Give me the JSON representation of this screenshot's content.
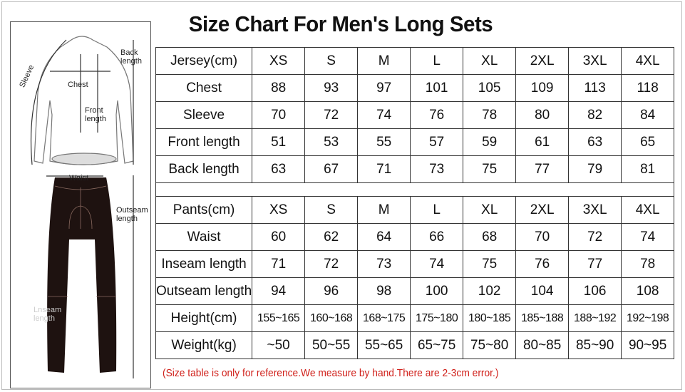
{
  "title": "Size Chart For Men's Long Sets",
  "diagram": {
    "labels": {
      "sleeve": "Sleeve",
      "back_length": "Back length",
      "chest": "Chest",
      "front_length": "Front length",
      "waist": "Waist",
      "outseam_length": "Outseam length",
      "inseam_length": "Lnseam length"
    }
  },
  "jersey": {
    "headers": [
      "Jersey(cm)",
      "XS",
      "S",
      "M",
      "L",
      "XL",
      "2XL",
      "3XL",
      "4XL"
    ],
    "rows": [
      [
        "Chest",
        "88",
        "93",
        "97",
        "101",
        "105",
        "109",
        "113",
        "118"
      ],
      [
        "Sleeve",
        "70",
        "72",
        "74",
        "76",
        "78",
        "80",
        "82",
        "84"
      ],
      [
        "Front length",
        "51",
        "53",
        "55",
        "57",
        "59",
        "61",
        "63",
        "65"
      ],
      [
        "Back length",
        "63",
        "67",
        "71",
        "73",
        "75",
        "77",
        "79",
        "81"
      ]
    ]
  },
  "pants": {
    "headers": [
      "Pants(cm)",
      "XS",
      "S",
      "M",
      "L",
      "XL",
      "2XL",
      "3XL",
      "4XL"
    ],
    "rows": [
      [
        "Waist",
        "60",
        "62",
        "64",
        "66",
        "68",
        "70",
        "72",
        "74"
      ],
      [
        "Inseam length",
        "71",
        "72",
        "73",
        "74",
        "75",
        "76",
        "77",
        "78"
      ],
      [
        "Outseam length",
        "94",
        "96",
        "98",
        "100",
        "102",
        "104",
        "106",
        "108"
      ],
      [
        "Height(cm)",
        "155~165",
        "160~168",
        "168~175",
        "175~180",
        "180~185",
        "185~188",
        "188~192",
        "192~198"
      ],
      [
        "Weight(kg)",
        "~50",
        "50~55",
        "55~65",
        "65~75",
        "75~80",
        "80~85",
        "85~90",
        "90~95"
      ]
    ]
  },
  "note": "(Size table is only for reference.We measure by hand.There are 2-3cm error.)",
  "colors": {
    "note": "#d0201a",
    "pants": "#1e1210"
  }
}
